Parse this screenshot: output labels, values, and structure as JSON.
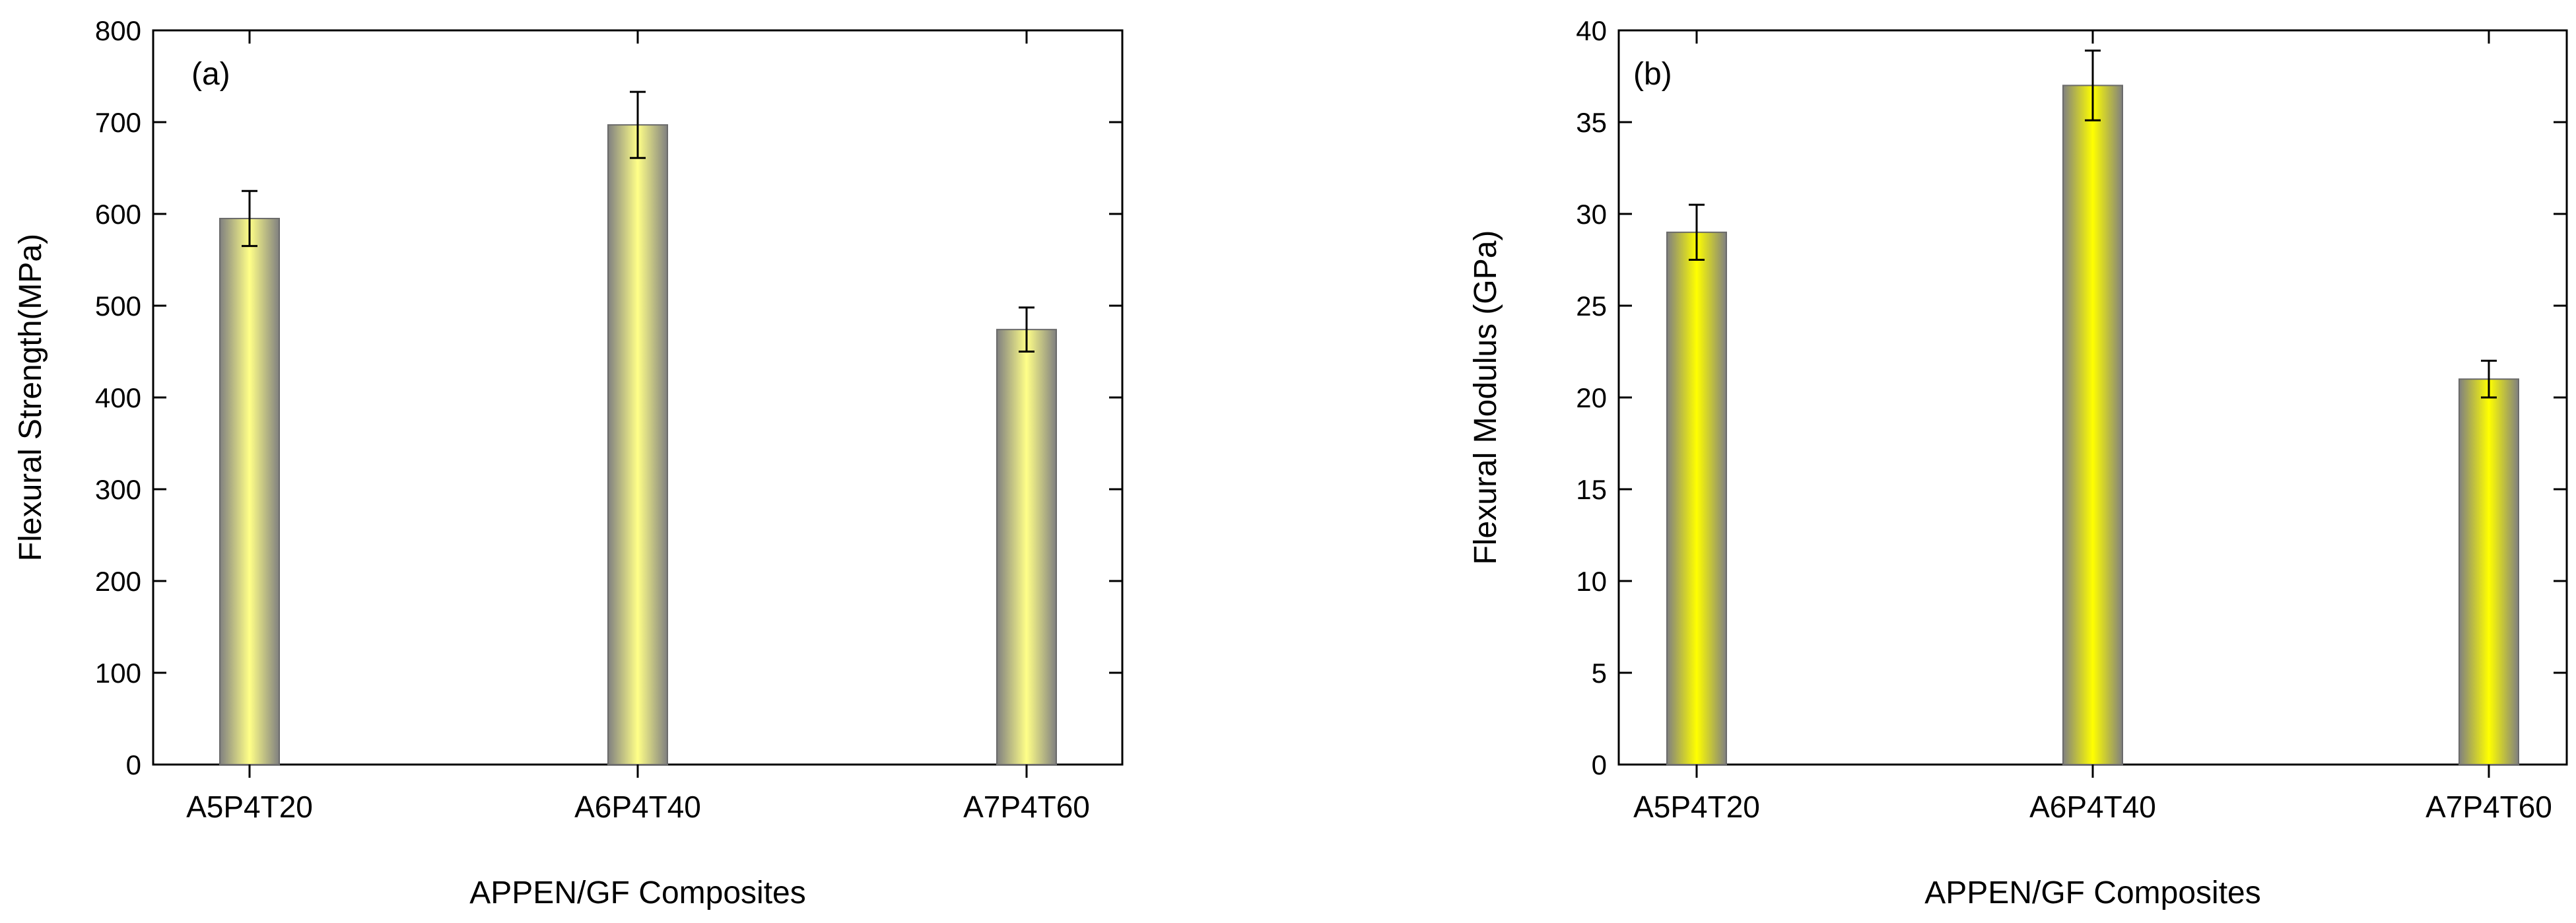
{
  "chart_data": [
    {
      "type": "bar",
      "panel_label": "(a)",
      "title": "",
      "xlabel": "APPEN/GF Composites",
      "ylabel": "Flexural Strength(MPa)",
      "categories": [
        "A5P4T20",
        "A6P4T40",
        "A7P4T60"
      ],
      "values": [
        595,
        697,
        474
      ],
      "errors": [
        30,
        36,
        24
      ],
      "ylim": [
        0,
        800
      ],
      "yticks": [
        0,
        100,
        200,
        300,
        400,
        500,
        600,
        700,
        800
      ],
      "bar_colors": {
        "edge": "#808080",
        "center": "#ffff88"
      }
    },
    {
      "type": "bar",
      "panel_label": "(b)",
      "title": "",
      "xlabel": "APPEN/GF Composites",
      "ylabel": "Flexural Modulus (GPa)",
      "categories": [
        "A5P4T20",
        "A6P4T40",
        "A7P4T60"
      ],
      "values": [
        29,
        37,
        21
      ],
      "errors": [
        1.5,
        1.9,
        1.0
      ],
      "ylim": [
        0,
        40
      ],
      "yticks": [
        0,
        5,
        10,
        15,
        20,
        25,
        30,
        35,
        40
      ],
      "bar_colors": {
        "edge": "#808080",
        "center": "#ffff00"
      }
    }
  ]
}
